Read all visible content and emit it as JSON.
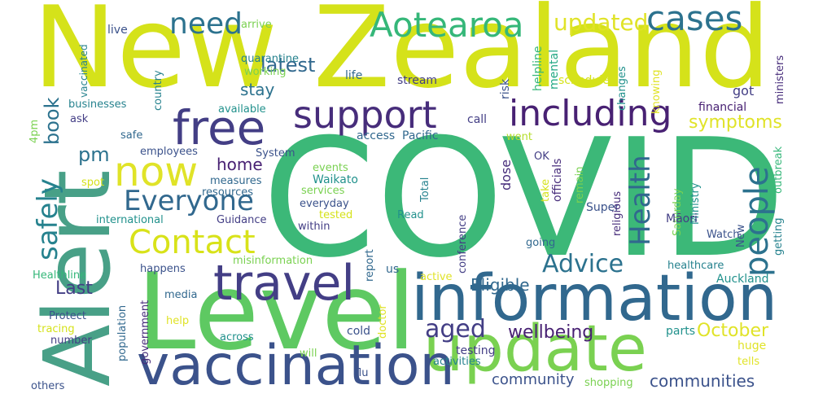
{
  "colors": {
    "background": "#ffffff",
    "palette": [
      "#fde725",
      "#d5e21a",
      "#b5de2b",
      "#7ad151",
      "#5ec962",
      "#35b779",
      "#22a884",
      "#1f988b",
      "#21918c",
      "#26828e",
      "#2c728e",
      "#31688e",
      "#3b528b",
      "#433e85",
      "#472d7b",
      "#482173",
      "#440154"
    ]
  },
  "words": [
    {
      "text": "COVID",
      "color": "#3cb878",
      "orientation": "horizontal"
    },
    {
      "text": "New Zealand",
      "color": "#d5e21a",
      "orientation": "horizontal"
    },
    {
      "text": "Alert",
      "color": "#48a087",
      "orientation": "vertical"
    },
    {
      "text": "Level",
      "color": "#5ec962",
      "orientation": "horizontal"
    },
    {
      "text": "information",
      "color": "#31688e",
      "orientation": "horizontal"
    },
    {
      "text": "update",
      "color": "#7ad151",
      "orientation": "horizontal"
    },
    {
      "text": "vaccination",
      "color": "#3b528b",
      "orientation": "horizontal"
    },
    {
      "text": "travel",
      "color": "#433e85",
      "orientation": "horizontal"
    },
    {
      "text": "free",
      "color": "#433e85",
      "orientation": "horizontal"
    },
    {
      "text": "support",
      "color": "#472d7b",
      "orientation": "horizontal"
    },
    {
      "text": "including",
      "color": "#482173",
      "orientation": "horizontal"
    },
    {
      "text": "now",
      "color": "#e0e328",
      "orientation": "horizontal"
    },
    {
      "text": "Contact",
      "color": "#d8e219",
      "orientation": "horizontal"
    },
    {
      "text": "Everyone",
      "color": "#31688e",
      "orientation": "horizontal"
    },
    {
      "text": "Aotearoa",
      "color": "#35b779",
      "orientation": "horizontal"
    },
    {
      "text": "cases",
      "color": "#2c728e",
      "orientation": "horizontal"
    },
    {
      "text": "need",
      "color": "#2c728e",
      "orientation": "horizontal"
    },
    {
      "text": "updated",
      "color": "#e0e328",
      "orientation": "horizontal"
    },
    {
      "text": "people",
      "color": "#2c728e",
      "orientation": "vertical"
    },
    {
      "text": "Health",
      "color": "#31688e",
      "orientation": "vertical"
    },
    {
      "text": "Advice",
      "color": "#2c728e",
      "orientation": "horizontal"
    },
    {
      "text": "safely",
      "color": "#26828e",
      "orientation": "vertical"
    },
    {
      "text": "aged",
      "color": "#433e85",
      "orientation": "horizontal"
    },
    {
      "text": "symptoms",
      "color": "#e0e328",
      "orientation": "horizontal"
    },
    {
      "text": "latest",
      "color": "#31688e",
      "orientation": "horizontal"
    },
    {
      "text": "stay",
      "color": "#2c728e",
      "orientation": "horizontal"
    },
    {
      "text": "pm",
      "color": "#2c728e",
      "orientation": "horizontal"
    },
    {
      "text": "book",
      "color": "#2c728e",
      "orientation": "vertical"
    },
    {
      "text": "home",
      "color": "#482173",
      "orientation": "horizontal"
    },
    {
      "text": "Last",
      "color": "#433e85",
      "orientation": "horizontal"
    },
    {
      "text": "wellbeing",
      "color": "#482173",
      "orientation": "horizontal"
    },
    {
      "text": "October",
      "color": "#e0e328",
      "orientation": "horizontal"
    },
    {
      "text": "Eligible",
      "color": "#31688e",
      "orientation": "horizontal"
    },
    {
      "text": "community",
      "color": "#3b528b",
      "orientation": "horizontal"
    },
    {
      "text": "communities",
      "color": "#3b528b",
      "orientation": "horizontal"
    },
    {
      "text": "quarantine",
      "color": "#26828e",
      "orientation": "horizontal"
    },
    {
      "text": "working",
      "color": "#7ad151",
      "orientation": "horizontal"
    },
    {
      "text": "arrive",
      "color": "#7ad151",
      "orientation": "horizontal"
    },
    {
      "text": "live",
      "color": "#3b528b",
      "orientation": "horizontal"
    },
    {
      "text": "vaccinated",
      "color": "#26828e",
      "orientation": "vertical"
    },
    {
      "text": "helpline",
      "color": "#35b779",
      "orientation": "vertical"
    },
    {
      "text": "mental",
      "color": "#22a884",
      "orientation": "vertical"
    },
    {
      "text": "schedule",
      "color": "#d5e21a",
      "orientation": "horizontal"
    },
    {
      "text": "risk",
      "color": "#3b528b",
      "orientation": "vertical"
    },
    {
      "text": "stream",
      "color": "#433e85",
      "orientation": "horizontal"
    },
    {
      "text": "life",
      "color": "#31688e",
      "orientation": "horizontal"
    },
    {
      "text": "got",
      "color": "#433e85",
      "orientation": "horizontal"
    },
    {
      "text": "changes",
      "color": "#21918c",
      "orientation": "vertical"
    },
    {
      "text": "knowing",
      "color": "#e0e328",
      "orientation": "vertical"
    },
    {
      "text": "ministers",
      "color": "#472d7b",
      "orientation": "vertical"
    },
    {
      "text": "financial",
      "color": "#482173",
      "orientation": "horizontal"
    },
    {
      "text": "available",
      "color": "#21918c",
      "orientation": "horizontal"
    },
    {
      "text": "businesses",
      "color": "#26828e",
      "orientation": "horizontal"
    },
    {
      "text": "country",
      "color": "#26828e",
      "orientation": "vertical"
    },
    {
      "text": "ask",
      "color": "#433e85",
      "orientation": "horizontal"
    },
    {
      "text": "call",
      "color": "#433e85",
      "orientation": "horizontal"
    },
    {
      "text": "access",
      "color": "#31688e",
      "orientation": "horizontal"
    },
    {
      "text": "Pacific",
      "color": "#31688e",
      "orientation": "horizontal"
    },
    {
      "text": "4pm",
      "color": "#7ad151",
      "orientation": "vertical"
    },
    {
      "text": "safe",
      "color": "#31688e",
      "orientation": "horizontal"
    },
    {
      "text": "employees",
      "color": "#3b528b",
      "orientation": "horizontal"
    },
    {
      "text": "System",
      "color": "#3b528b",
      "orientation": "horizontal"
    },
    {
      "text": "went",
      "color": "#b5de2b",
      "orientation": "horizontal"
    },
    {
      "text": "OK",
      "color": "#433e85",
      "orientation": "horizontal"
    },
    {
      "text": "dose",
      "color": "#472d7b",
      "orientation": "vertical"
    },
    {
      "text": "officials",
      "color": "#472d7b",
      "orientation": "vertical"
    },
    {
      "text": "remain",
      "color": "#7ad151",
      "orientation": "vertical"
    },
    {
      "text": "outbreak",
      "color": "#35b779",
      "orientation": "vertical"
    },
    {
      "text": "events",
      "color": "#7ad151",
      "orientation": "horizontal"
    },
    {
      "text": "Waikato",
      "color": "#21918c",
      "orientation": "horizontal"
    },
    {
      "text": "measures",
      "color": "#31688e",
      "orientation": "horizontal"
    },
    {
      "text": "resources",
      "color": "#31688e",
      "orientation": "horizontal"
    },
    {
      "text": "services",
      "color": "#7ad151",
      "orientation": "horizontal"
    },
    {
      "text": "spot",
      "color": "#d5e21a",
      "orientation": "horizontal"
    },
    {
      "text": "everyday",
      "color": "#3b528b",
      "orientation": "horizontal"
    },
    {
      "text": "Total",
      "color": "#26828e",
      "orientation": "vertical"
    },
    {
      "text": "take",
      "color": "#d5e21a",
      "orientation": "vertical"
    },
    {
      "text": "Super",
      "color": "#3b528b",
      "orientation": "horizontal"
    },
    {
      "text": "religious",
      "color": "#472d7b",
      "orientation": "vertical"
    },
    {
      "text": "Saturday",
      "color": "#7ad151",
      "orientation": "vertical"
    },
    {
      "text": "Ministry",
      "color": "#21918c",
      "orientation": "vertical"
    },
    {
      "text": "getting",
      "color": "#26828e",
      "orientation": "vertical"
    },
    {
      "text": "international",
      "color": "#21918c",
      "orientation": "horizontal"
    },
    {
      "text": "Guidance",
      "color": "#433e85",
      "orientation": "horizontal"
    },
    {
      "text": "tested",
      "color": "#d5e21a",
      "orientation": "horizontal"
    },
    {
      "text": "Read",
      "color": "#21918c",
      "orientation": "horizontal"
    },
    {
      "text": "within",
      "color": "#433e85",
      "orientation": "horizontal"
    },
    {
      "text": "conference",
      "color": "#433e85",
      "orientation": "vertical"
    },
    {
      "text": "Māori",
      "color": "#433e85",
      "orientation": "horizontal"
    },
    {
      "text": "Watch",
      "color": "#3b528b",
      "orientation": "horizontal"
    },
    {
      "text": "New",
      "color": "#3b528b",
      "orientation": "vertical"
    },
    {
      "text": "going",
      "color": "#31688e",
      "orientation": "horizontal"
    },
    {
      "text": "report",
      "color": "#31688e",
      "orientation": "vertical"
    },
    {
      "text": "misinformation",
      "color": "#7ad151",
      "orientation": "horizontal"
    },
    {
      "text": "us",
      "color": "#31688e",
      "orientation": "horizontal"
    },
    {
      "text": "active",
      "color": "#e0e328",
      "orientation": "horizontal"
    },
    {
      "text": "happens",
      "color": "#3b528b",
      "orientation": "horizontal"
    },
    {
      "text": "healthcare",
      "color": "#26828e",
      "orientation": "horizontal"
    },
    {
      "text": "Auckland",
      "color": "#21918c",
      "orientation": "horizontal"
    },
    {
      "text": "Healthline",
      "color": "#35b779",
      "orientation": "horizontal"
    },
    {
      "text": "media",
      "color": "#31688e",
      "orientation": "horizontal"
    },
    {
      "text": "population",
      "color": "#31688e",
      "orientation": "vertical"
    },
    {
      "text": "government",
      "color": "#472d7b",
      "orientation": "vertical"
    },
    {
      "text": "Protect",
      "color": "#3b528b",
      "orientation": "horizontal"
    },
    {
      "text": "tracing",
      "color": "#d5e21a",
      "orientation": "horizontal"
    },
    {
      "text": "number",
      "color": "#433e85",
      "orientation": "horizontal"
    },
    {
      "text": "help",
      "color": "#e0e328",
      "orientation": "horizontal"
    },
    {
      "text": "across",
      "color": "#21918c",
      "orientation": "horizontal"
    },
    {
      "text": "doctor",
      "color": "#e0e328",
      "orientation": "vertical"
    },
    {
      "text": "cold",
      "color": "#3b528b",
      "orientation": "horizontal"
    },
    {
      "text": "will",
      "color": "#7ad151",
      "orientation": "horizontal"
    },
    {
      "text": "flu",
      "color": "#3b528b",
      "orientation": "horizontal"
    },
    {
      "text": "testing",
      "color": "#433e85",
      "orientation": "horizontal"
    },
    {
      "text": "activities",
      "color": "#26828e",
      "orientation": "horizontal"
    },
    {
      "text": "parts",
      "color": "#21918c",
      "orientation": "horizontal"
    },
    {
      "text": "huge",
      "color": "#e0e328",
      "orientation": "horizontal"
    },
    {
      "text": "tells",
      "color": "#e0e328",
      "orientation": "horizontal"
    },
    {
      "text": "shopping",
      "color": "#7ad151",
      "orientation": "horizontal"
    },
    {
      "text": "others",
      "color": "#3b528b",
      "orientation": "horizontal"
    }
  ]
}
